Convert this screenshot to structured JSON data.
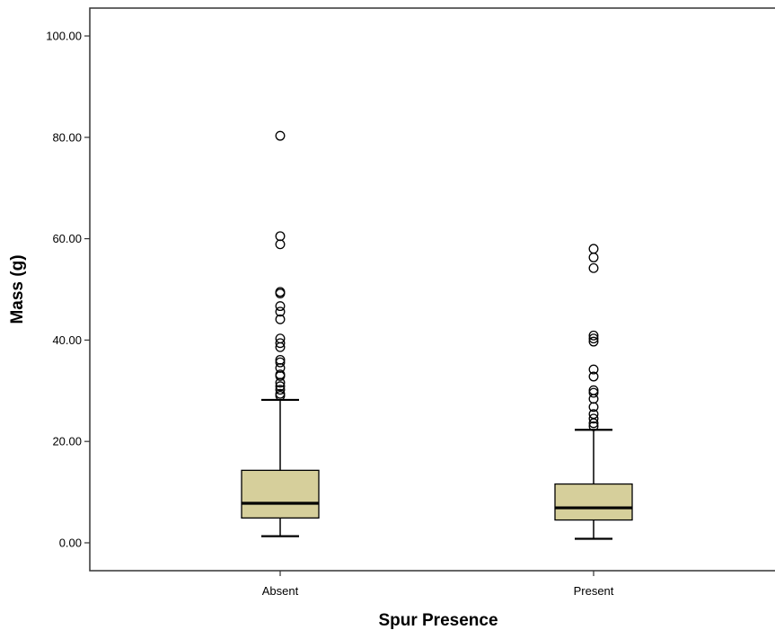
{
  "chart_data": {
    "type": "boxplot",
    "xlabel": "Spur Presence",
    "ylabel": "Mass (g)",
    "ylim": [
      -5.5,
      105.5
    ],
    "yticks": [
      0,
      20,
      40,
      60,
      80,
      100
    ],
    "ytick_labels": [
      "0.00",
      "20.00",
      "40.00",
      "60.00",
      "80.00",
      "100.00"
    ],
    "categories": [
      "Absent",
      "Present"
    ],
    "box_color": "#d6cf9b",
    "boxes": [
      {
        "category": "Absent",
        "whisker_low": 1.3,
        "q1": 4.9,
        "median": 7.8,
        "q3": 14.3,
        "whisker_high": 28.2,
        "outliers": [
          29.0,
          29.4,
          30.2,
          30.9,
          31.6,
          32.9,
          33.2,
          34.5,
          35.6,
          36.1,
          38.6,
          39.4,
          40.3,
          44.1,
          45.6,
          46.7,
          49.2,
          49.5,
          58.9,
          60.5,
          80.3
        ]
      },
      {
        "category": "Present",
        "whisker_low": 0.8,
        "q1": 4.5,
        "median": 6.9,
        "q3": 11.6,
        "whisker_high": 22.3,
        "outliers": [
          23.0,
          23.6,
          24.5,
          25.4,
          26.8,
          28.4,
          29.6,
          30.1,
          32.8,
          34.2,
          39.7,
          40.3,
          40.9,
          54.2,
          56.3,
          58.0
        ]
      }
    ]
  }
}
